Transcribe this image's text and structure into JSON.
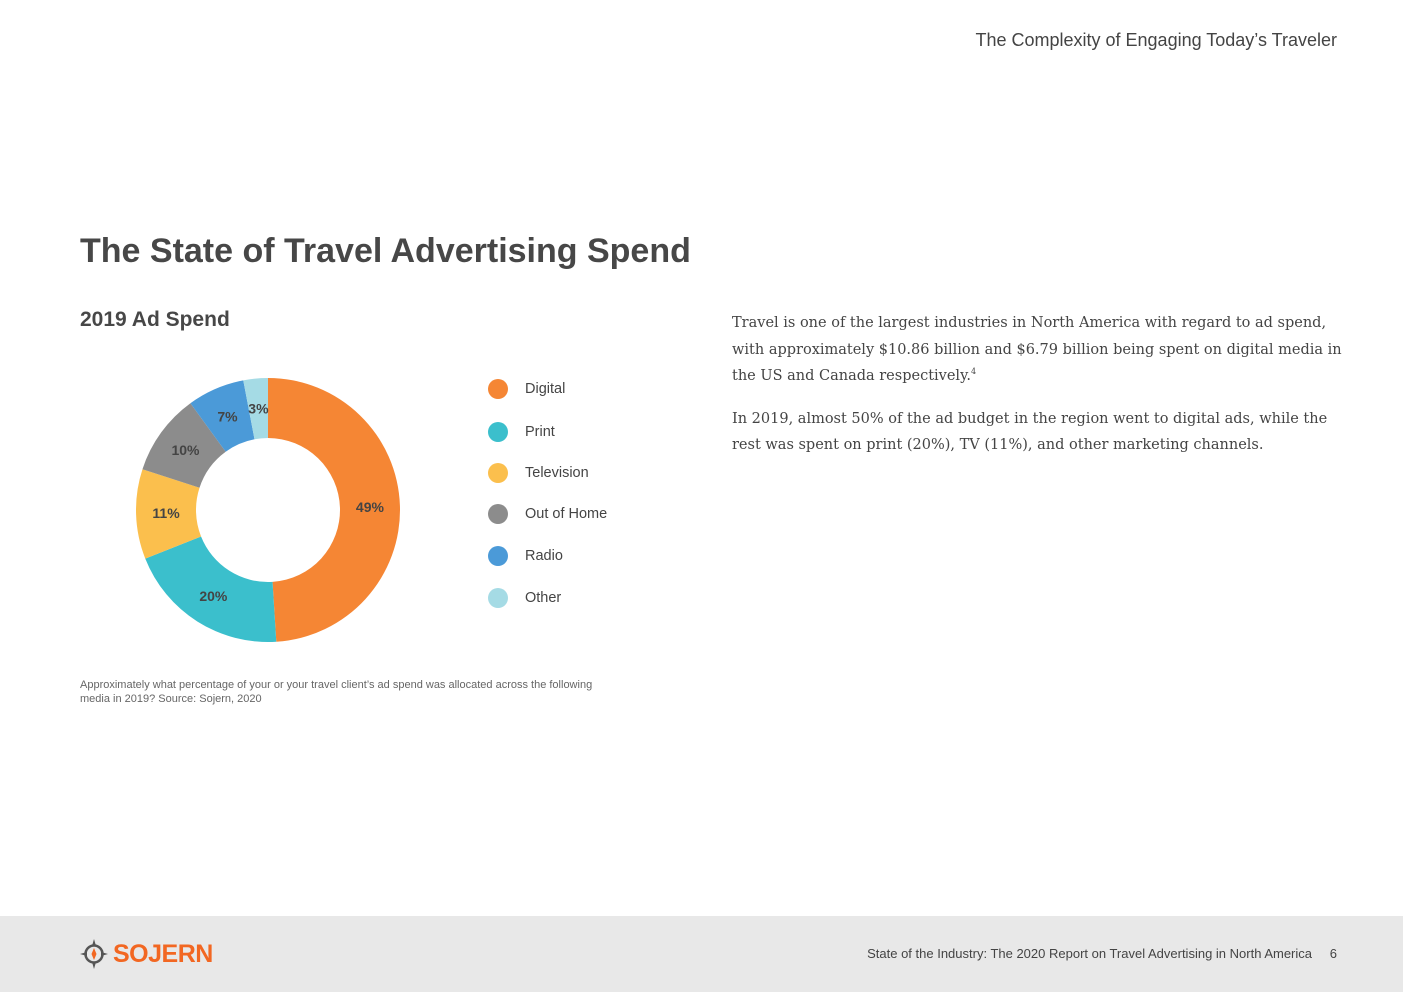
{
  "header": {
    "title": "The Complexity of Engaging Today’s Traveler"
  },
  "page": {
    "heading": "The State of Travel Advertising Spend"
  },
  "chart_data": {
    "type": "pie",
    "donut": true,
    "title": "2019 Ad Spend",
    "legend_position": "right",
    "categories": [
      "Digital",
      "Print",
      "Television",
      "Out of Home",
      "Radio",
      "Other"
    ],
    "values": [
      49,
      20,
      11,
      10,
      7,
      3
    ],
    "labels": [
      "49%",
      "20%",
      "11%",
      "10%",
      "7%",
      "3%"
    ],
    "colors": [
      "#f58634",
      "#3bbfcc",
      "#fbbf4d",
      "#8c8c8c",
      "#4b9ad8",
      "#a5dbe5"
    ],
    "caption": "Approximately what percentage of your or your travel client’s ad spend was allocated across the following media in 2019? Source: Sojern, 2020"
  },
  "body": {
    "paragraph1": "Travel is one of the largest industries in North America with regard to ad spend, with approximately $10.86 billion and $6.79 billion being spent on digital media in the US and Canada respectively.",
    "footnote_ref": "4",
    "paragraph2": "In 2019, almost 50% of the ad budget in the region went to digital ads, while the rest was spent on print (20%), TV (11%), and other marketing channels."
  },
  "footer": {
    "logo_text": "SOJERN",
    "logo_icon": "compass-icon",
    "brand_color": "#f26722",
    "report_title": "State of the Industry: The 2020 Report on Travel Advertising in North America",
    "page_number": "6"
  }
}
